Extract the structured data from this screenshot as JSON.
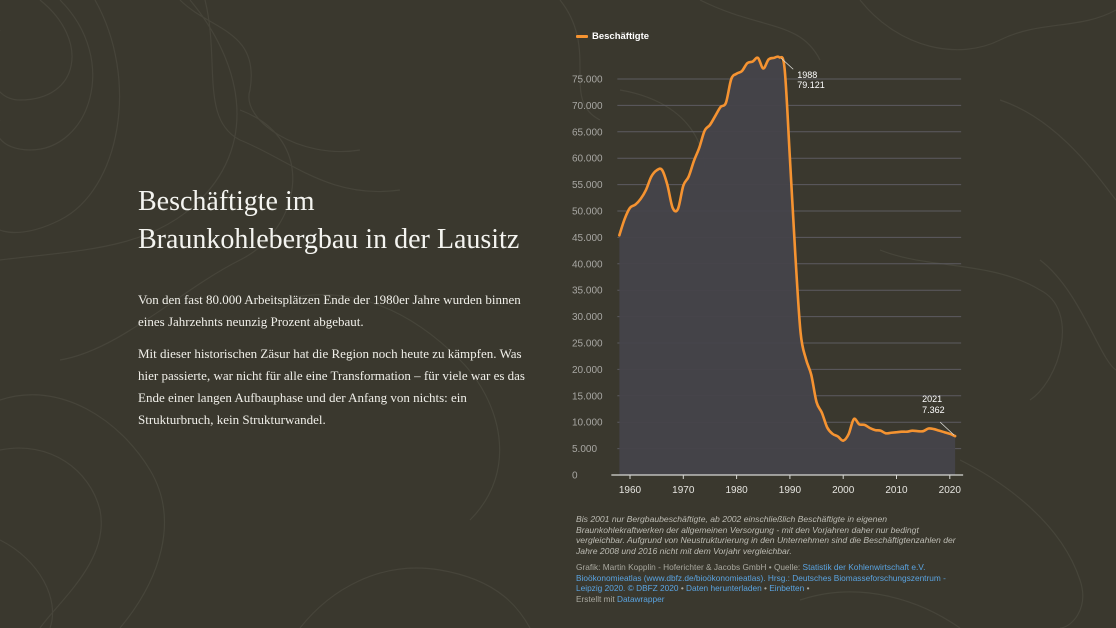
{
  "story": {
    "title": "Beschäftigte im Braunkohlebergbau in der Lausitz",
    "paragraphs": [
      "Von den fast 80.000 Arbeitsplätzen Ende der 1980er Jahre wurden binnen eines Jahrzehnts neunzig Prozent abgebaut.",
      "Mit dieser historischen Zäsur hat die Region noch heute zu kämpfen. Was hier passierte, war nicht für alle eine Transformation – für viele war es das Ende einer langen Aufbauphase und der Anfang von nichts: ein Strukturbruch, kein Strukturwandel."
    ]
  },
  "colors": {
    "background": "#3a382e",
    "line": "#f59331",
    "area": "#44434a",
    "grid": "#5c5b60",
    "tick_text": "#a8a7a3",
    "link": "#5aa3e0"
  },
  "chart_data": {
    "type": "area",
    "title": "",
    "xlabel": "",
    "ylabel": "",
    "legend": {
      "entries": [
        "Beschäftigte"
      ],
      "placement": "top-left"
    },
    "series": [
      {
        "name": "Beschäftigte",
        "x": [
          1958,
          1959,
          1960,
          1961,
          1962,
          1963,
          1964,
          1965,
          1966,
          1967,
          1968,
          1969,
          1970,
          1971,
          1972,
          1973,
          1974,
          1975,
          1976,
          1977,
          1978,
          1979,
          1980,
          1981,
          1982,
          1983,
          1984,
          1985,
          1986,
          1987,
          1988,
          1989,
          1990,
          1991,
          1992,
          1993,
          1994,
          1995,
          1996,
          1997,
          1998,
          1999,
          2000,
          2001,
          2002,
          2003,
          2004,
          2005,
          2006,
          2007,
          2008,
          2009,
          2010,
          2011,
          2012,
          2013,
          2014,
          2015,
          2016,
          2017,
          2018,
          2019,
          2020,
          2021
        ],
        "values": [
          45400,
          48500,
          50600,
          51200,
          52300,
          54000,
          56500,
          57700,
          57800,
          55000,
          50600,
          50400,
          54800,
          56500,
          59500,
          62000,
          65200,
          66300,
          68000,
          69700,
          70500,
          75000,
          76000,
          76500,
          78000,
          78300,
          79000,
          77000,
          78700,
          79000,
          79121,
          77000,
          60000,
          42000,
          27000,
          22000,
          19000,
          13800,
          11800,
          9000,
          7800,
          7300,
          6500,
          7700,
          10600,
          9600,
          9500,
          8900,
          8500,
          8400,
          7900,
          8000,
          8100,
          8200,
          8200,
          8400,
          8300,
          8300,
          8800,
          8700,
          8400,
          8100,
          7800,
          7362
        ]
      }
    ],
    "xlim": [
      1958,
      2021
    ],
    "ylim": [
      0,
      80000
    ],
    "x_ticks": [
      1960,
      1970,
      1980,
      1990,
      2000,
      2010,
      2020
    ],
    "x_tick_labels": [
      "1960",
      "1970",
      "1980",
      "1990",
      "2000",
      "2010",
      "2020"
    ],
    "y_ticks": [
      0,
      5000,
      10000,
      15000,
      20000,
      25000,
      30000,
      35000,
      40000,
      45000,
      50000,
      55000,
      60000,
      65000,
      70000,
      75000
    ],
    "y_tick_labels": [
      "0",
      "5.000",
      "10.000",
      "15.000",
      "20.000",
      "25.000",
      "30.000",
      "35.000",
      "40.000",
      "45.000",
      "50.000",
      "55.000",
      "60.000",
      "65.000",
      "70.000",
      "75.000"
    ],
    "grid": true,
    "annotations": [
      {
        "x": 1988,
        "y": 79121,
        "year_label": "1988",
        "value_label": "79.121"
      },
      {
        "x": 2021,
        "y": 7362,
        "year_label": "2021",
        "value_label": "7.362"
      }
    ]
  },
  "notes": "Bis 2001 nur Bergbaubeschäftigte, ab 2002 einschließlich Beschäftigte in eigenen Braunkohlekraftwerken der allgemeinen Versorgung - mit den Vorjahren daher nur bedingt vergleichbar. Aufgrund von Neustrukturierung in den Unternehmen sind die Beschäftigtenzahlen der Jahre 2008 und 2016 nicht mit dem Vorjahr vergleichbar.",
  "byline": {
    "grafik_prefix": "Grafik: Martin Kopplin - Hoferichter & Jacobs GmbH • Quelle: ",
    "source_link": "Statistik der Kohlenwirtschaft e.V.",
    "source_rest": "Bioökonomieatlas (www.dbfz.de/bioökonomieatlas). Hrsg.: Deutsches Biomasseforschungszentrum - Leipzig 2020. © DBFZ 2020",
    "sep1": " • ",
    "download_link": "Daten herunterladen",
    "sep2": " • ",
    "embed_link": "Einbetten",
    "sep3": " •",
    "created_prefix": "Erstellt mit ",
    "tool_link": "Datawrapper"
  }
}
